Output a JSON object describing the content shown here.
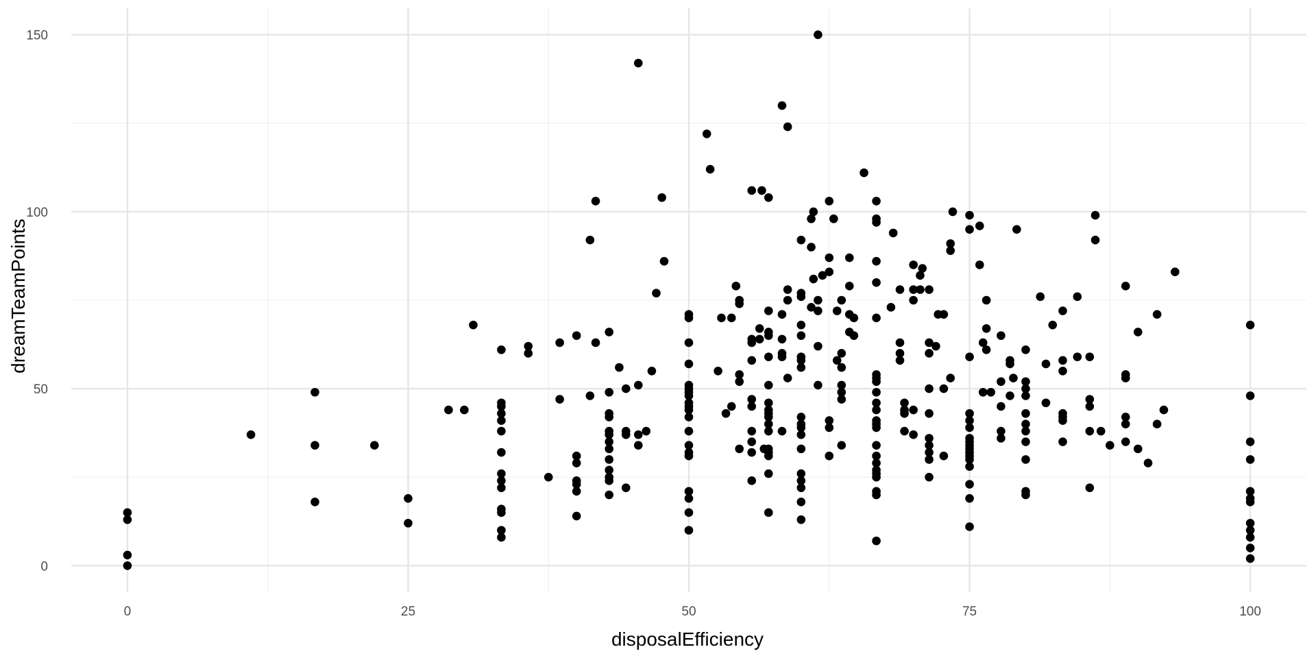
{
  "chart_data": {
    "type": "scatter",
    "title": "",
    "xlabel": "disposalEfficiency",
    "ylabel": "dreamTeamPoints",
    "xlim": [
      -5,
      105
    ],
    "ylim": [
      -7.5,
      157.5
    ],
    "x_ticks": [
      0,
      25,
      50,
      75,
      100
    ],
    "x_tick_labels": [
      "0",
      "25",
      "50",
      "75",
      "100"
    ],
    "y_ticks": [
      0,
      50,
      100,
      150
    ],
    "y_tick_labels": [
      "0",
      "50",
      "100",
      "150"
    ],
    "grid": true,
    "legend": "none",
    "point_color": "#000000",
    "points": [
      [
        0,
        0
      ],
      [
        0,
        3
      ],
      [
        0,
        13
      ],
      [
        0,
        15
      ],
      [
        11,
        37
      ],
      [
        16.7,
        18
      ],
      [
        16.7,
        34
      ],
      [
        16.7,
        49
      ],
      [
        22,
        34
      ],
      [
        25,
        12
      ],
      [
        25,
        19
      ],
      [
        28.6,
        44
      ],
      [
        30,
        44
      ],
      [
        30.8,
        68
      ],
      [
        33.3,
        8
      ],
      [
        33.3,
        10
      ],
      [
        33.3,
        15
      ],
      [
        33.3,
        16
      ],
      [
        33.3,
        22
      ],
      [
        33.3,
        24
      ],
      [
        33.3,
        26
      ],
      [
        33.3,
        32
      ],
      [
        33.3,
        38
      ],
      [
        33.3,
        41
      ],
      [
        33.3,
        43
      ],
      [
        33.3,
        45
      ],
      [
        33.3,
        46
      ],
      [
        33.3,
        61
      ],
      [
        35.7,
        60
      ],
      [
        35.7,
        62
      ],
      [
        37.5,
        25
      ],
      [
        38.5,
        47
      ],
      [
        38.5,
        63
      ],
      [
        40,
        14
      ],
      [
        40,
        21
      ],
      [
        40,
        23
      ],
      [
        40,
        24
      ],
      [
        40,
        29
      ],
      [
        40,
        31
      ],
      [
        40,
        65
      ],
      [
        41.2,
        48
      ],
      [
        41.2,
        92
      ],
      [
        41.7,
        63
      ],
      [
        41.7,
        103
      ],
      [
        42.9,
        20
      ],
      [
        42.9,
        24
      ],
      [
        42.9,
        25
      ],
      [
        42.9,
        27
      ],
      [
        42.9,
        30
      ],
      [
        42.9,
        33
      ],
      [
        42.9,
        35
      ],
      [
        42.9,
        37
      ],
      [
        42.9,
        38
      ],
      [
        42.9,
        42
      ],
      [
        42.9,
        43
      ],
      [
        42.9,
        49
      ],
      [
        42.9,
        66
      ],
      [
        43.8,
        56
      ],
      [
        44.4,
        22
      ],
      [
        44.4,
        37
      ],
      [
        44.4,
        38
      ],
      [
        44.4,
        50
      ],
      [
        45.5,
        34
      ],
      [
        45.5,
        37
      ],
      [
        45.5,
        51
      ],
      [
        45.5,
        142
      ],
      [
        46.2,
        38
      ],
      [
        46.7,
        55
      ],
      [
        47.1,
        77
      ],
      [
        47.6,
        104
      ],
      [
        47.8,
        86
      ],
      [
        50,
        10
      ],
      [
        50,
        15
      ],
      [
        50,
        19
      ],
      [
        50,
        21
      ],
      [
        50,
        31
      ],
      [
        50,
        32
      ],
      [
        50,
        34
      ],
      [
        50,
        38
      ],
      [
        50,
        42
      ],
      [
        50,
        44
      ],
      [
        50,
        45
      ],
      [
        50,
        46
      ],
      [
        50,
        48
      ],
      [
        50,
        49
      ],
      [
        50,
        50
      ],
      [
        50,
        51
      ],
      [
        50,
        57
      ],
      [
        50,
        63
      ],
      [
        50,
        70
      ],
      [
        50,
        71
      ],
      [
        51.6,
        122
      ],
      [
        51.9,
        112
      ],
      [
        52.6,
        55
      ],
      [
        52.9,
        70
      ],
      [
        53.3,
        43
      ],
      [
        53.8,
        45
      ],
      [
        53.8,
        70
      ],
      [
        54.2,
        79
      ],
      [
        54.5,
        33
      ],
      [
        54.5,
        52
      ],
      [
        54.5,
        54
      ],
      [
        54.5,
        74
      ],
      [
        54.5,
        75
      ],
      [
        55.6,
        24
      ],
      [
        55.6,
        32
      ],
      [
        55.6,
        35
      ],
      [
        55.6,
        38
      ],
      [
        55.6,
        45
      ],
      [
        55.6,
        47
      ],
      [
        55.6,
        58
      ],
      [
        55.6,
        63
      ],
      [
        55.6,
        64
      ],
      [
        55.6,
        106
      ],
      [
        56.3,
        64
      ],
      [
        56.3,
        67
      ],
      [
        56.5,
        106
      ],
      [
        56.7,
        33
      ],
      [
        57.1,
        15
      ],
      [
        57.1,
        26
      ],
      [
        57.1,
        31
      ],
      [
        57.1,
        32
      ],
      [
        57.1,
        33
      ],
      [
        57.1,
        38
      ],
      [
        57.1,
        40
      ],
      [
        57.1,
        42
      ],
      [
        57.1,
        43
      ],
      [
        57.1,
        44
      ],
      [
        57.1,
        46
      ],
      [
        57.1,
        51
      ],
      [
        57.1,
        59
      ],
      [
        57.1,
        65
      ],
      [
        57.1,
        66
      ],
      [
        57.1,
        72
      ],
      [
        57.1,
        104
      ],
      [
        58.3,
        38
      ],
      [
        58.3,
        59
      ],
      [
        58.3,
        60
      ],
      [
        58.3,
        64
      ],
      [
        58.3,
        71
      ],
      [
        58.3,
        130
      ],
      [
        58.8,
        53
      ],
      [
        58.8,
        75
      ],
      [
        58.8,
        78
      ],
      [
        58.8,
        124
      ],
      [
        60,
        13
      ],
      [
        60,
        18
      ],
      [
        60,
        22
      ],
      [
        60,
        24
      ],
      [
        60,
        26
      ],
      [
        60,
        33
      ],
      [
        60,
        37
      ],
      [
        60,
        39
      ],
      [
        60,
        40
      ],
      [
        60,
        42
      ],
      [
        60,
        56
      ],
      [
        60,
        58
      ],
      [
        60,
        59
      ],
      [
        60,
        65
      ],
      [
        60,
        68
      ],
      [
        60,
        76
      ],
      [
        60,
        77
      ],
      [
        60,
        92
      ],
      [
        60.9,
        73
      ],
      [
        60.9,
        90
      ],
      [
        60.9,
        98
      ],
      [
        61.1,
        81
      ],
      [
        61.1,
        100
      ],
      [
        61.5,
        51
      ],
      [
        61.5,
        62
      ],
      [
        61.5,
        72
      ],
      [
        61.5,
        75
      ],
      [
        61.5,
        150
      ],
      [
        61.9,
        82
      ],
      [
        62.5,
        31
      ],
      [
        62.5,
        39
      ],
      [
        62.5,
        41
      ],
      [
        62.5,
        83
      ],
      [
        62.5,
        87
      ],
      [
        62.5,
        103
      ],
      [
        62.9,
        98
      ],
      [
        63.2,
        58
      ],
      [
        63.2,
        72
      ],
      [
        63.6,
        34
      ],
      [
        63.6,
        47
      ],
      [
        63.6,
        49
      ],
      [
        63.6,
        51
      ],
      [
        63.6,
        56
      ],
      [
        63.6,
        60
      ],
      [
        63.6,
        75
      ],
      [
        64.3,
        66
      ],
      [
        64.3,
        71
      ],
      [
        64.3,
        79
      ],
      [
        64.3,
        87
      ],
      [
        64.7,
        65
      ],
      [
        64.7,
        70
      ],
      [
        65.6,
        111
      ],
      [
        66.7,
        7
      ],
      [
        66.7,
        20
      ],
      [
        66.7,
        21
      ],
      [
        66.7,
        25
      ],
      [
        66.7,
        26
      ],
      [
        66.7,
        27
      ],
      [
        66.7,
        29
      ],
      [
        66.7,
        31
      ],
      [
        66.7,
        34
      ],
      [
        66.7,
        39
      ],
      [
        66.7,
        40
      ],
      [
        66.7,
        41
      ],
      [
        66.7,
        44
      ],
      [
        66.7,
        46
      ],
      [
        66.7,
        49
      ],
      [
        66.7,
        52
      ],
      [
        66.7,
        53
      ],
      [
        66.7,
        54
      ],
      [
        66.7,
        70
      ],
      [
        66.7,
        80
      ],
      [
        66.7,
        86
      ],
      [
        66.7,
        97
      ],
      [
        66.7,
        98
      ],
      [
        66.7,
        103
      ],
      [
        68,
        73
      ],
      [
        68.2,
        94
      ],
      [
        68.8,
        58
      ],
      [
        68.8,
        60
      ],
      [
        68.8,
        63
      ],
      [
        68.8,
        78
      ],
      [
        69.2,
        38
      ],
      [
        69.2,
        43
      ],
      [
        69.2,
        44
      ],
      [
        69.2,
        46
      ],
      [
        70,
        37
      ],
      [
        70,
        44
      ],
      [
        70,
        75
      ],
      [
        70,
        78
      ],
      [
        70,
        85
      ],
      [
        70.6,
        78
      ],
      [
        70.6,
        82
      ],
      [
        70.8,
        84
      ],
      [
        71.4,
        25
      ],
      [
        71.4,
        30
      ],
      [
        71.4,
        32
      ],
      [
        71.4,
        34
      ],
      [
        71.4,
        36
      ],
      [
        71.4,
        43
      ],
      [
        71.4,
        50
      ],
      [
        71.4,
        60
      ],
      [
        71.4,
        63
      ],
      [
        71.4,
        78
      ],
      [
        72,
        62
      ],
      [
        72.2,
        71
      ],
      [
        72.7,
        31
      ],
      [
        72.7,
        50
      ],
      [
        72.7,
        71
      ],
      [
        73.3,
        53
      ],
      [
        73.3,
        89
      ],
      [
        73.3,
        91
      ],
      [
        73.5,
        100
      ],
      [
        75,
        11
      ],
      [
        75,
        19
      ],
      [
        75,
        23
      ],
      [
        75,
        28
      ],
      [
        75,
        30
      ],
      [
        75,
        31
      ],
      [
        75,
        32
      ],
      [
        75,
        33
      ],
      [
        75,
        34
      ],
      [
        75,
        35
      ],
      [
        75,
        36
      ],
      [
        75,
        39
      ],
      [
        75,
        41
      ],
      [
        75,
        43
      ],
      [
        75,
        59
      ],
      [
        75,
        95
      ],
      [
        75,
        99
      ],
      [
        75.9,
        85
      ],
      [
        75.9,
        96
      ],
      [
        76.2,
        49
      ],
      [
        76.2,
        63
      ],
      [
        76.5,
        61
      ],
      [
        76.5,
        67
      ],
      [
        76.5,
        75
      ],
      [
        76.9,
        49
      ],
      [
        77.8,
        36
      ],
      [
        77.8,
        38
      ],
      [
        77.8,
        45
      ],
      [
        77.8,
        52
      ],
      [
        77.8,
        65
      ],
      [
        78.6,
        48
      ],
      [
        78.6,
        57
      ],
      [
        78.6,
        58
      ],
      [
        78.9,
        53
      ],
      [
        79.2,
        95
      ],
      [
        80,
        20
      ],
      [
        80,
        21
      ],
      [
        80,
        30
      ],
      [
        80,
        35
      ],
      [
        80,
        38
      ],
      [
        80,
        40
      ],
      [
        80,
        43
      ],
      [
        80,
        48
      ],
      [
        80,
        50
      ],
      [
        80,
        52
      ],
      [
        80,
        61
      ],
      [
        81.3,
        76
      ],
      [
        81.8,
        46
      ],
      [
        81.8,
        57
      ],
      [
        82.4,
        68
      ],
      [
        83.3,
        35
      ],
      [
        83.3,
        41
      ],
      [
        83.3,
        42
      ],
      [
        83.3,
        43
      ],
      [
        83.3,
        55
      ],
      [
        83.3,
        58
      ],
      [
        83.3,
        72
      ],
      [
        84.6,
        59
      ],
      [
        84.6,
        76
      ],
      [
        85.7,
        22
      ],
      [
        85.7,
        38
      ],
      [
        85.7,
        45
      ],
      [
        85.7,
        47
      ],
      [
        85.7,
        59
      ],
      [
        86.2,
        92
      ],
      [
        86.2,
        99
      ],
      [
        86.7,
        38
      ],
      [
        87.5,
        34
      ],
      [
        88.9,
        35
      ],
      [
        88.9,
        40
      ],
      [
        88.9,
        42
      ],
      [
        88.9,
        53
      ],
      [
        88.9,
        54
      ],
      [
        88.9,
        79
      ],
      [
        90,
        33
      ],
      [
        90,
        66
      ],
      [
        90.9,
        29
      ],
      [
        91.7,
        40
      ],
      [
        91.7,
        71
      ],
      [
        92.3,
        44
      ],
      [
        93.3,
        83
      ],
      [
        100,
        2
      ],
      [
        100,
        5
      ],
      [
        100,
        8
      ],
      [
        100,
        10
      ],
      [
        100,
        12
      ],
      [
        100,
        18
      ],
      [
        100,
        19
      ],
      [
        100,
        21
      ],
      [
        100,
        30
      ],
      [
        100,
        35
      ],
      [
        100,
        48
      ],
      [
        100,
        68
      ]
    ]
  }
}
